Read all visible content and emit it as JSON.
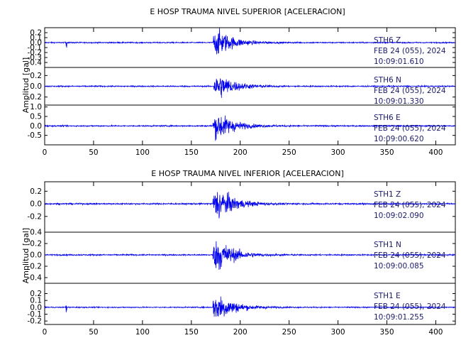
{
  "chart_data": [
    {
      "type": "line",
      "title": "E HOSP TRAUMA NIVEL SUPERIOR [ACELERACION]",
      "ylabel": "Amplitud  [gal]",
      "xlim": [
        0,
        420
      ],
      "x_ticks": [
        "0",
        "50",
        "100",
        "150",
        "200",
        "250",
        "300",
        "350",
        "400"
      ],
      "line_color": "#0000ee",
      "series": [
        {
          "label_lines": [
            "STH6   Z",
            "FEB 24 (055), 2024",
            "10:09:01.610"
          ],
          "ylim": [
            -0.5,
            0.3
          ],
          "y_ticks": [
            "0.2",
            "0.1",
            "0.0",
            "-0.1",
            "-0.2",
            "-0.3",
            "-0.4"
          ],
          "y_tick_values": [
            0.2,
            0.1,
            0.0,
            -0.1,
            -0.2,
            -0.3,
            -0.4
          ],
          "noise_amplitude": 0.012,
          "peak_amplitude": 0.28,
          "event_onset": 172,
          "spike_time": 22
        },
        {
          "label_lines": [
            "STH6   N",
            "FEB 24 (055), 2024",
            "10:09:01.330"
          ],
          "ylim": [
            -0.35,
            0.35
          ],
          "y_ticks": [
            "0.2",
            "0.0",
            "-0.2"
          ],
          "y_tick_values": [
            0.2,
            0.0,
            -0.2
          ],
          "noise_amplitude": 0.012,
          "peak_amplitude": 0.24,
          "event_onset": 173,
          "spike_time": null
        },
        {
          "label_lines": [
            "STH6   E",
            "FEB 24 (055), 2024",
            "10:09:00.620"
          ],
          "ylim": [
            -1.0,
            1.1
          ],
          "y_ticks": [
            "1.0",
            "0.5",
            "0.0",
            "-0.5"
          ],
          "y_tick_values": [
            1.0,
            0.5,
            0.0,
            -0.5
          ],
          "noise_amplitude": 0.035,
          "peak_amplitude": 0.75,
          "event_onset": 172,
          "spike_time": null
        }
      ]
    },
    {
      "type": "line",
      "title": "E HOSP TRAUMA NIVEL INFERIOR [ACELERACION]",
      "ylabel": "Amplitud  [gal]",
      "xlim": [
        0,
        420
      ],
      "x_ticks": [
        "0",
        "50",
        "100",
        "150",
        "200",
        "250",
        "300",
        "350",
        "400"
      ],
      "line_color": "#0000ee",
      "series": [
        {
          "label_lines": [
            "STH1   Z",
            "FEB 24 (055), 2024",
            "10:09:02.090"
          ],
          "ylim": [
            -0.45,
            0.35
          ],
          "y_ticks": [
            "0.2",
            "0.0",
            "-0.2"
          ],
          "y_tick_values": [
            0.2,
            0.0,
            -0.2
          ],
          "noise_amplitude": 0.012,
          "peak_amplitude": 0.27,
          "event_onset": 172,
          "spike_time": null
        },
        {
          "label_lines": [
            "STH1   N",
            "FEB 24 (055), 2024",
            "10:09:00.085"
          ],
          "ylim": [
            -0.5,
            0.4
          ],
          "y_ticks": [
            "0.4",
            "0.2",
            "0.0",
            "-0.2",
            "-0.4"
          ],
          "y_tick_values": [
            0.4,
            0.2,
            0.0,
            -0.2,
            -0.4
          ],
          "noise_amplitude": 0.012,
          "peak_amplitude": 0.3,
          "event_onset": 172,
          "spike_time": null
        },
        {
          "label_lines": [
            "STH1   E",
            "FEB 24 (055), 2024",
            "10:09:01.255"
          ],
          "ylim": [
            -0.25,
            0.35
          ],
          "y_ticks": [
            "0.2",
            "0.1",
            "0.0",
            "-0.1",
            "-0.2"
          ],
          "y_tick_values": [
            0.2,
            0.1,
            0.0,
            -0.1,
            -0.2
          ],
          "noise_amplitude": 0.008,
          "peak_amplitude": 0.22,
          "event_onset": 172,
          "spike_time": 22
        }
      ]
    }
  ]
}
